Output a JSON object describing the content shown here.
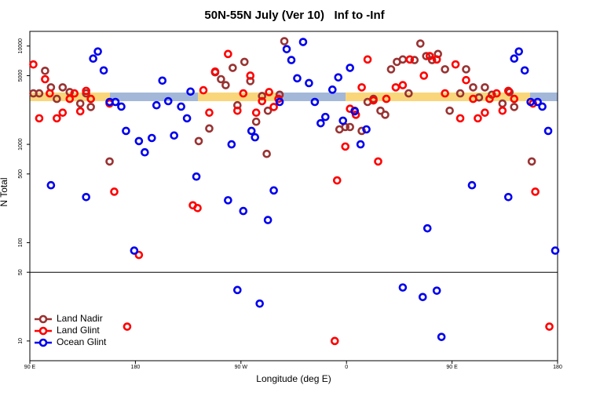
{
  "chart_data": {
    "type": "scatter",
    "title": "50N-55N July (Ver 10)   Inf to -Inf",
    "x_label": "Longitude (deg E)",
    "y_label": "N Total",
    "log_y": true,
    "legend": "bottom-left",
    "xlim": [
      90,
      540
    ],
    "xticks": [
      {
        "value": 90,
        "label": "90 E"
      },
      {
        "value": 180,
        "label": "180"
      },
      {
        "value": 270,
        "label": "90 W"
      },
      {
        "value": 360,
        "label": "0"
      },
      {
        "value": 450,
        "label": "90 E"
      },
      {
        "value": 540,
        "label": "180"
      }
    ],
    "ylim": [
      6.3,
      14100
    ],
    "yticks": [
      10,
      50,
      100,
      500,
      1000,
      5000,
      10000
    ],
    "series": [
      {
        "name": "Land Nadir",
        "color": "#993333",
        "x": [
          93,
          98,
          103,
          108,
          113,
          118,
          124,
          133,
          138,
          142,
          158,
          234,
          243,
          248,
          253,
          257,
          263,
          267,
          273,
          278,
          283,
          288,
          292,
          293,
          303,
          307,
          354,
          359,
          363,
          367,
          373,
          378,
          383,
          389,
          393,
          398,
          403,
          408,
          413,
          418,
          423,
          428,
          433,
          438,
          444,
          448,
          457,
          462,
          468,
          473,
          478,
          484,
          493,
          499,
          503,
          518
        ],
        "values": [
          3300,
          3300,
          5600,
          3800,
          2900,
          3800,
          3400,
          2600,
          3300,
          2400,
          670,
          1080,
          1450,
          5400,
          4600,
          4000,
          6000,
          2500,
          6900,
          4400,
          1700,
          3100,
          800,
          2200,
          3200,
          11200,
          1420,
          1500,
          1500,
          2200,
          1370,
          2700,
          2900,
          2200,
          2000,
          5800,
          6900,
          7300,
          3300,
          7200,
          10600,
          7900,
          7200,
          8300,
          5800,
          2200,
          3300,
          5800,
          3800,
          3000,
          3800,
          3200,
          2600,
          3400,
          2400,
          670
        ]
      },
      {
        "name": "Land Glint",
        "color": "#ff0000",
        "x": [
          93,
          98,
          103,
          107,
          113,
          118,
          124,
          128,
          133,
          138,
          142,
          158,
          162,
          183,
          173,
          229,
          233,
          238,
          243,
          248,
          259,
          267,
          272,
          278,
          283,
          288,
          294,
          298,
          302,
          350,
          352,
          359,
          363,
          368,
          373,
          378,
          383,
          387,
          394,
          402,
          408,
          414,
          426,
          431,
          437,
          444,
          453,
          457,
          462,
          468,
          472,
          478,
          482,
          488,
          493,
          498,
          503,
          519,
          521,
          533
        ],
        "values": [
          6500,
          1840,
          4600,
          3300,
          1840,
          2100,
          2900,
          3300,
          2170,
          3500,
          2900,
          2600,
          330,
          75,
          14,
          240,
          225,
          3550,
          2100,
          5500,
          8300,
          2200,
          3300,
          5000,
          2100,
          2750,
          3400,
          2400,
          2900,
          10,
          430,
          950,
          2300,
          2000,
          3800,
          7300,
          2800,
          670,
          2900,
          3800,
          4000,
          7300,
          5000,
          7900,
          7300,
          3300,
          6500,
          1840,
          4500,
          2900,
          1840,
          2100,
          2900,
          3300,
          2200,
          3500,
          2900,
          2600,
          330,
          14
        ]
      },
      {
        "name": "Ocean Glint",
        "color": "#0000ee",
        "x": [
          108,
          138,
          144,
          148,
          153,
          158,
          163,
          168,
          172,
          179,
          183,
          188,
          194,
          198,
          203,
          208,
          213,
          219,
          224,
          227,
          232,
          259,
          262,
          267,
          272,
          279,
          282,
          286,
          293,
          298,
          303,
          309,
          313,
          318,
          323,
          328,
          333,
          338,
          342,
          348,
          353,
          357,
          363,
          367,
          372,
          377,
          408,
          425,
          429,
          437,
          441,
          467,
          498,
          503,
          507,
          512,
          517,
          523,
          527,
          532,
          538
        ],
        "values": [
          384,
          291,
          7450,
          8800,
          5650,
          2700,
          2700,
          2420,
          1370,
          83,
          1080,
          830,
          1160,
          2500,
          4450,
          2750,
          1230,
          2420,
          1840,
          3440,
          470,
          270,
          1000,
          33,
          210,
          1370,
          1180,
          24,
          170,
          340,
          2700,
          9300,
          7200,
          4700,
          11000,
          4200,
          2700,
          1640,
          1900,
          3600,
          4800,
          1740,
          6000,
          2170,
          1000,
          1420,
          35,
          28,
          140,
          32.5,
          11,
          384,
          291,
          7450,
          8800,
          5650,
          2700,
          2700,
          2420,
          1370,
          83
        ]
      }
    ]
  }
}
